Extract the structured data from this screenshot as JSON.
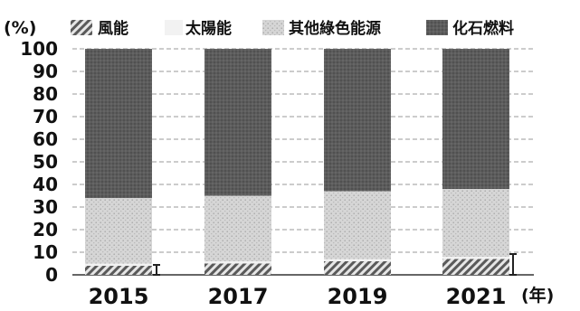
{
  "chart_data": {
    "type": "bar",
    "stacked": true,
    "categories": [
      "2015",
      "2017",
      "2019",
      "2021"
    ],
    "series": [
      {
        "name": "風能",
        "values": [
          4,
          5,
          6,
          7
        ],
        "color": "#777777",
        "pattern": "hatch"
      },
      {
        "name": "太陽能",
        "values": [
          1,
          1,
          1,
          1
        ],
        "color": "#f2f2f2",
        "pattern": "none"
      },
      {
        "name": "其他綠色能源",
        "values": [
          29,
          29,
          30,
          30
        ],
        "color": "#cfcfcf",
        "pattern": "dots"
      },
      {
        "name": "化石燃料",
        "values": [
          66,
          65,
          63,
          62
        ],
        "color": "#555555",
        "pattern": "dense"
      }
    ],
    "y_unit_label": "(%)",
    "x_unit_label": "(年)",
    "yticks": [
      0,
      10,
      20,
      30,
      40,
      50,
      60,
      70,
      80,
      90,
      100
    ],
    "ylim": [
      0,
      100
    ],
    "grid": "horizontal-dashed",
    "legend_position": "top"
  }
}
